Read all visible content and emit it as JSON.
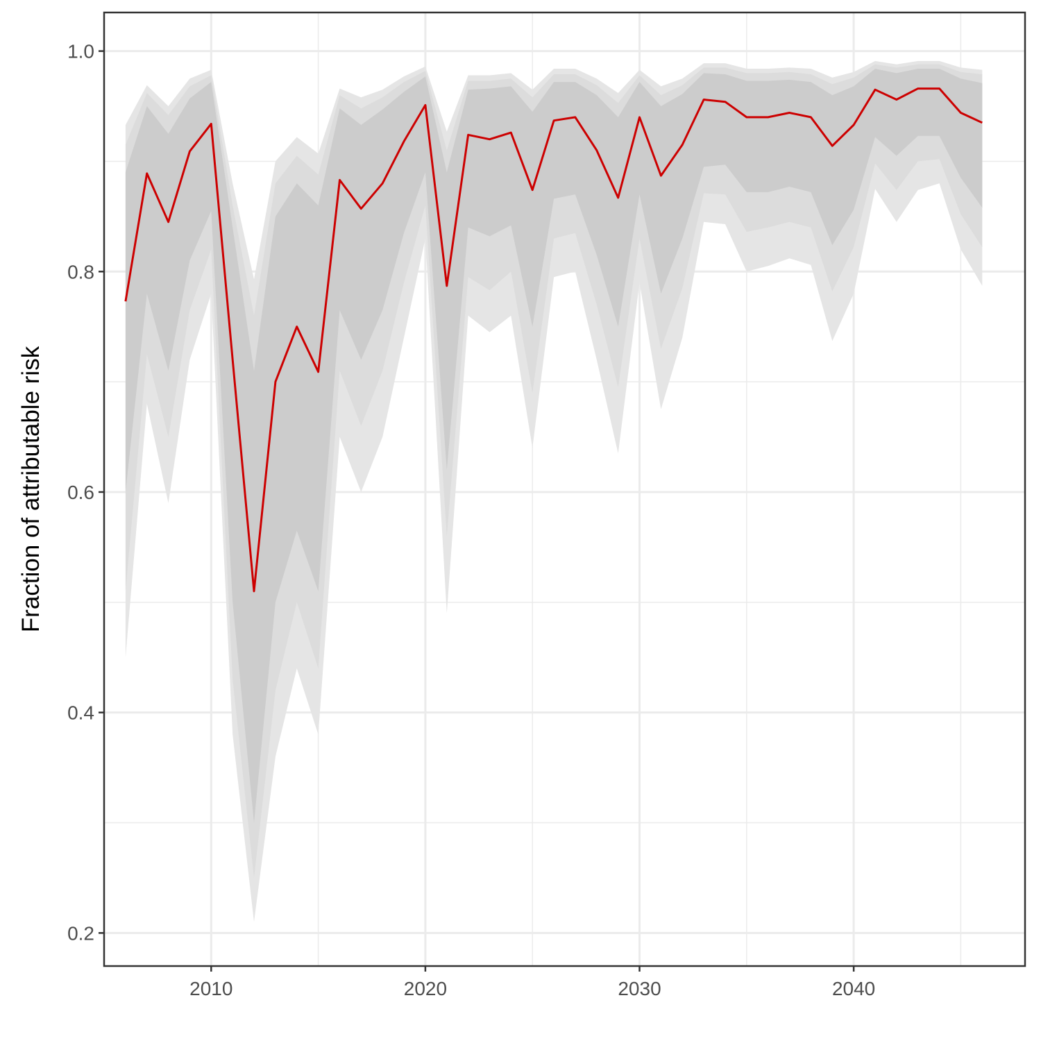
{
  "chart_data": {
    "type": "line",
    "ylabel": "Fraction of attributable risk",
    "xlabel": "",
    "title": "",
    "xlim": [
      2005,
      2048
    ],
    "ylim": [
      0.17,
      1.035
    ],
    "x_ticks": [
      2010,
      2020,
      2030,
      2040
    ],
    "x_tick_labels": [
      "2010",
      "2020",
      "2030",
      "2040"
    ],
    "x_minor_ticks": [
      2005,
      2015,
      2025,
      2035,
      2045
    ],
    "y_ticks": [
      0.2,
      0.4,
      0.6,
      0.8,
      1.0
    ],
    "y_tick_labels": [
      "0.2",
      "0.4",
      "0.6",
      "0.8",
      "1.0"
    ],
    "y_minor_ticks": [
      0.3,
      0.5,
      0.7,
      0.9
    ],
    "grid": true,
    "colors": {
      "line": "#cc0000",
      "band_outer": "#e5e5e5",
      "band_middle": "#dcdcdc",
      "band_inner": "#cccccc",
      "grid": "#ebebeb",
      "panel_border": "#333333"
    },
    "x": [
      2006,
      2007,
      2008,
      2009,
      2010,
      2011,
      2012,
      2013,
      2014,
      2015,
      2016,
      2017,
      2018,
      2019,
      2020,
      2021,
      2022,
      2023,
      2024,
      2025,
      2026,
      2027,
      2028,
      2029,
      2030,
      2031,
      2032,
      2033,
      2034,
      2035,
      2036,
      2037,
      2038,
      2039,
      2040,
      2041,
      2042,
      2043,
      2044,
      2045,
      2046
    ],
    "series": [
      {
        "role": "median",
        "values": [
          0.773,
          0.889,
          0.845,
          0.909,
          0.934,
          0.72,
          0.51,
          0.7,
          0.75,
          0.709,
          0.883,
          0.857,
          0.88,
          0.918,
          0.951,
          0.787,
          0.924,
          0.92,
          0.926,
          0.874,
          0.937,
          0.94,
          0.91,
          0.867,
          0.94,
          0.887,
          0.915,
          0.956,
          0.954,
          0.94,
          0.94,
          0.944,
          0.94,
          0.914,
          0.933,
          0.965,
          0.956,
          0.966,
          0.966,
          0.944,
          0.935
        ]
      }
    ],
    "bands": [
      {
        "role": "outer",
        "lower": [
          0.45,
          0.68,
          0.59,
          0.72,
          0.78,
          0.38,
          0.21,
          0.36,
          0.44,
          0.38,
          0.65,
          0.6,
          0.65,
          0.74,
          0.83,
          0.49,
          0.76,
          0.745,
          0.76,
          0.64,
          0.795,
          0.8,
          0.72,
          0.635,
          0.79,
          0.675,
          0.74,
          0.845,
          0.843,
          0.8,
          0.805,
          0.812,
          0.806,
          0.737,
          0.78,
          0.875,
          0.845,
          0.874,
          0.88,
          0.82,
          0.787
        ],
        "upper": [
          0.933,
          0.969,
          0.95,
          0.975,
          0.983,
          0.88,
          0.793,
          0.9,
          0.922,
          0.907,
          0.966,
          0.958,
          0.965,
          0.977,
          0.986,
          0.927,
          0.978,
          0.978,
          0.98,
          0.965,
          0.984,
          0.984,
          0.975,
          0.962,
          0.983,
          0.968,
          0.975,
          0.989,
          0.989,
          0.984,
          0.984,
          0.985,
          0.984,
          0.976,
          0.981,
          0.991,
          0.988,
          0.991,
          0.991,
          0.985,
          0.983
        ]
      },
      {
        "role": "middle",
        "lower": [
          0.51,
          0.725,
          0.65,
          0.765,
          0.82,
          0.43,
          0.25,
          0.42,
          0.5,
          0.44,
          0.71,
          0.66,
          0.71,
          0.79,
          0.86,
          0.56,
          0.795,
          0.783,
          0.8,
          0.69,
          0.83,
          0.835,
          0.77,
          0.695,
          0.83,
          0.73,
          0.785,
          0.871,
          0.87,
          0.836,
          0.84,
          0.845,
          0.84,
          0.782,
          0.822,
          0.898,
          0.874,
          0.9,
          0.902,
          0.852,
          0.822
        ],
        "upper": [
          0.915,
          0.962,
          0.942,
          0.968,
          0.978,
          0.86,
          0.76,
          0.88,
          0.905,
          0.888,
          0.96,
          0.948,
          0.958,
          0.972,
          0.982,
          0.91,
          0.973,
          0.973,
          0.975,
          0.958,
          0.979,
          0.979,
          0.969,
          0.953,
          0.978,
          0.96,
          0.969,
          0.985,
          0.985,
          0.98,
          0.98,
          0.981,
          0.979,
          0.97,
          0.976,
          0.988,
          0.985,
          0.988,
          0.988,
          0.981,
          0.979
        ]
      },
      {
        "role": "inner",
        "lower": [
          0.6,
          0.78,
          0.71,
          0.81,
          0.855,
          0.5,
          0.3,
          0.5,
          0.565,
          0.51,
          0.765,
          0.72,
          0.765,
          0.835,
          0.89,
          0.62,
          0.84,
          0.832,
          0.842,
          0.75,
          0.866,
          0.87,
          0.815,
          0.75,
          0.87,
          0.78,
          0.83,
          0.895,
          0.897,
          0.872,
          0.872,
          0.877,
          0.872,
          0.824,
          0.856,
          0.922,
          0.905,
          0.923,
          0.923,
          0.885,
          0.858
        ],
        "upper": [
          0.89,
          0.95,
          0.925,
          0.957,
          0.972,
          0.84,
          0.71,
          0.85,
          0.88,
          0.86,
          0.948,
          0.933,
          0.947,
          0.963,
          0.977,
          0.89,
          0.965,
          0.966,
          0.968,
          0.945,
          0.972,
          0.972,
          0.96,
          0.94,
          0.972,
          0.95,
          0.961,
          0.98,
          0.979,
          0.973,
          0.973,
          0.974,
          0.972,
          0.96,
          0.968,
          0.984,
          0.98,
          0.984,
          0.984,
          0.975,
          0.971
        ]
      }
    ]
  }
}
